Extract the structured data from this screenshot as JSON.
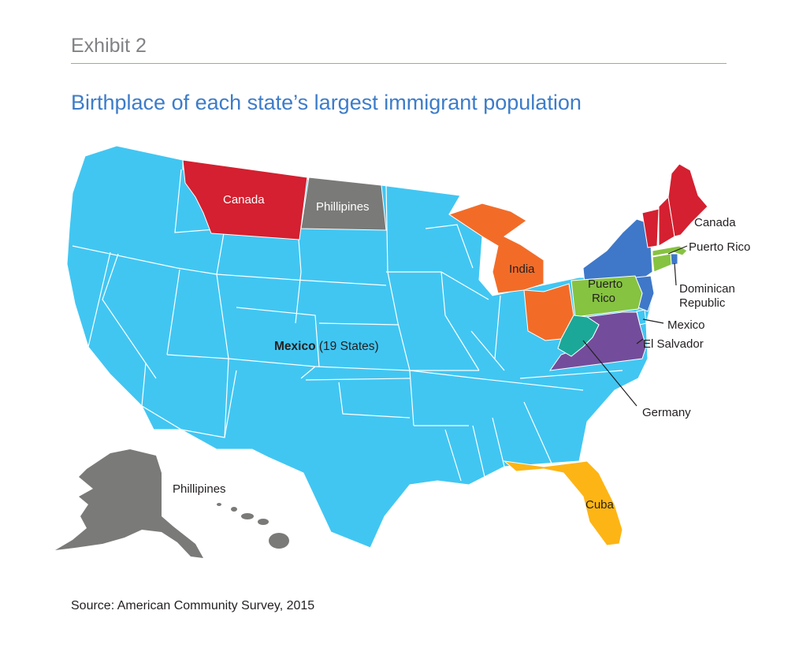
{
  "header": {
    "exhibit": "Exhibit 2",
    "title": "Birthplace of each state’s largest immigrant population"
  },
  "source": "Source: American Community Survey, 2015",
  "colors": {
    "mexico": "#41c6f2",
    "canada": "#d42030",
    "philippines": "#7a7a78",
    "india": "#f26c28",
    "dominican_republic": "#3f78c9",
    "puerto_rico": "#86c341",
    "el_salvador": "#734d9b",
    "germany": "#1ba898",
    "cuba": "#fdb515",
    "title_blue": "#3d7cc9",
    "rule_green": "#8cc63f"
  },
  "labels": {
    "mexico_bold": "Mexico",
    "mexico_count": " (19 States)",
    "canada_west": "Canada",
    "philippines_nd": "Phillipines",
    "canada_ne": "Canada",
    "puerto_rico_ma": "Puerto Rico",
    "dominican_1": "Dominican",
    "dominican_2": "Republic",
    "india": "India",
    "puerto_rico_pa_1": "Puerto",
    "puerto_rico_pa_2": "Rico",
    "mexico_de": "Mexico",
    "el_salvador": "El Salvador",
    "germany": "Germany",
    "philippines_ak": "Phillipines",
    "cuba": "Cuba"
  }
}
